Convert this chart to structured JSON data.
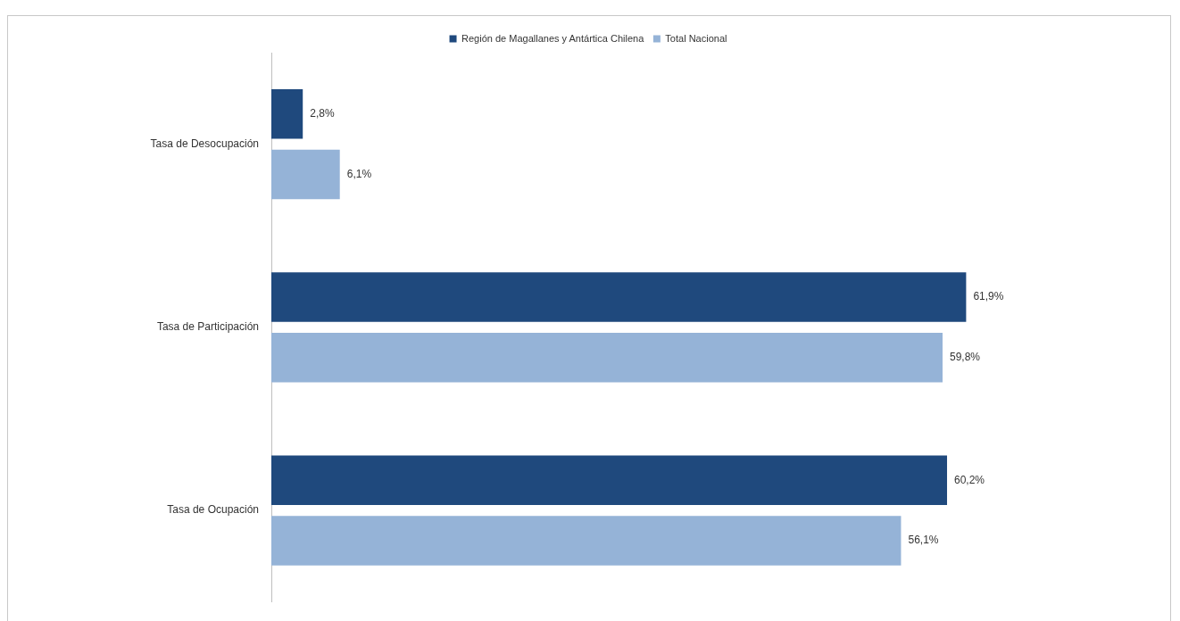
{
  "chart_data": {
    "type": "bar",
    "orientation": "horizontal",
    "categories": [
      "Tasa de Desocupación",
      "Tasa de Participación",
      "Tasa de Ocupación"
    ],
    "series": [
      {
        "name": "Región de Magallanes y Antártica Chilena",
        "color": "#1f497d",
        "values": [
          2.8,
          61.9,
          60.2
        ],
        "value_labels": [
          "2,8%",
          "61,9%",
          "60,2%"
        ]
      },
      {
        "name": "Total Nacional",
        "color": "#95b3d7",
        "values": [
          6.1,
          59.8,
          56.1
        ],
        "value_labels": [
          "6,1%",
          "59,8%",
          "56,1%"
        ]
      }
    ],
    "xlim": [
      0,
      80
    ],
    "tick_labels": "y",
    "legend": "top"
  }
}
